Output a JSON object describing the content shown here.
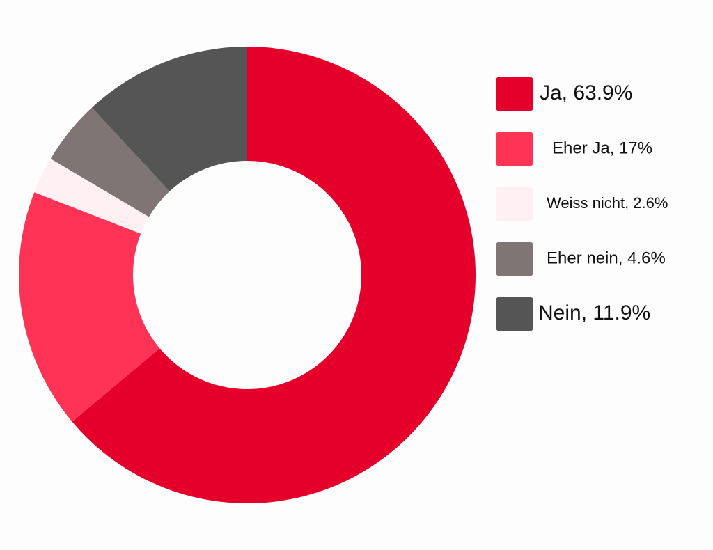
{
  "chart_data": {
    "type": "donut",
    "categories": [
      "Ja, 63.9%",
      "Eher Ja, 17%",
      "Weiss nicht, 2.6%",
      "Eher nein, 4.6%",
      "Nein, 11.9%"
    ],
    "values": [
      63.9,
      17,
      2.6,
      4.6,
      11.9
    ],
    "colors": [
      "#e4002b",
      "#ff3355",
      "#fff0f3",
      "#807575",
      "#555555"
    ],
    "legend": "right"
  }
}
